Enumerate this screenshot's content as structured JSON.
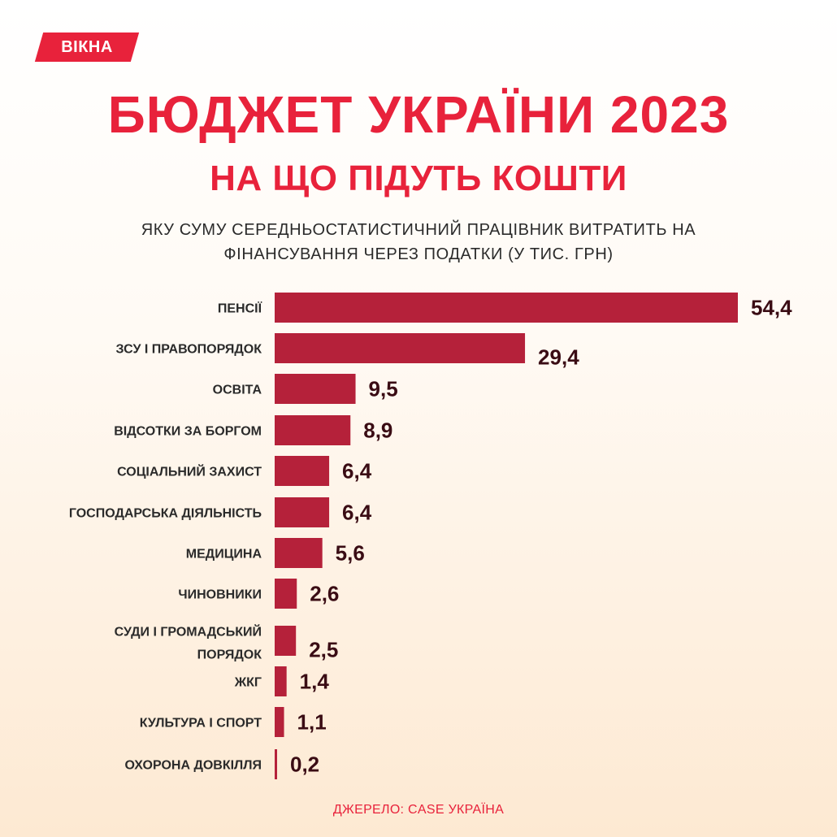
{
  "logo": {
    "text": "ВІКНА"
  },
  "header": {
    "title": "БЮДЖЕТ УКРАЇНИ 2023",
    "subtitle": "НА ЩО ПІДУТЬ КОШТИ",
    "caption": "ЯКУ СУМУ СЕРЕДНЬОСТАТИСТИЧНИЙ ПРАЦІВНИК ВИТРАТИТЬ НА ФІНАНСУВАННЯ ЧЕРЕЗ ПОДАТКИ (У ТИС. ГРН)"
  },
  "source": "ДЖЕРЕЛО: CASE УКРАЇНА",
  "colors": {
    "bar": "#b5213a",
    "accent": "#e8223b",
    "value": "#3a0c14"
  },
  "chart_data": {
    "type": "bar",
    "orientation": "horizontal",
    "title": "",
    "xlabel": "",
    "ylabel": "",
    "unit": "тис. грн",
    "grid": false,
    "legend": "none",
    "xlim": [
      0,
      54.4
    ],
    "categories": [
      "ПЕНСІЇ",
      "ЗСУ І ПРАВОПОРЯДОК",
      "ОСВІТА",
      "ВІДСОТКИ ЗА БОРГОМ",
      "СОЦІАЛЬНИЙ ЗАХИСТ",
      "ГОСПОДАРСЬКА ДІЯЛЬНІСТЬ",
      "МЕДИЦИНА",
      "ЧИНОВНИКИ",
      "СУДИ І ГРОМАДСЬКИЙ ПОРЯДОК",
      "ЖКГ",
      "КУЛЬТУРА І СПОРТ",
      "ОХОРОНА ДОВКІЛЛЯ"
    ],
    "values": [
      54.4,
      29.4,
      9.5,
      8.9,
      6.4,
      6.4,
      5.6,
      2.6,
      2.5,
      1.4,
      1.1,
      0.2
    ],
    "value_labels": [
      "54,4",
      "29,4",
      "9,5",
      "8,9",
      "6,4",
      "6,4",
      "5,6",
      "2,6",
      "2,5",
      "1,4",
      "1,1",
      "0,2"
    ]
  }
}
